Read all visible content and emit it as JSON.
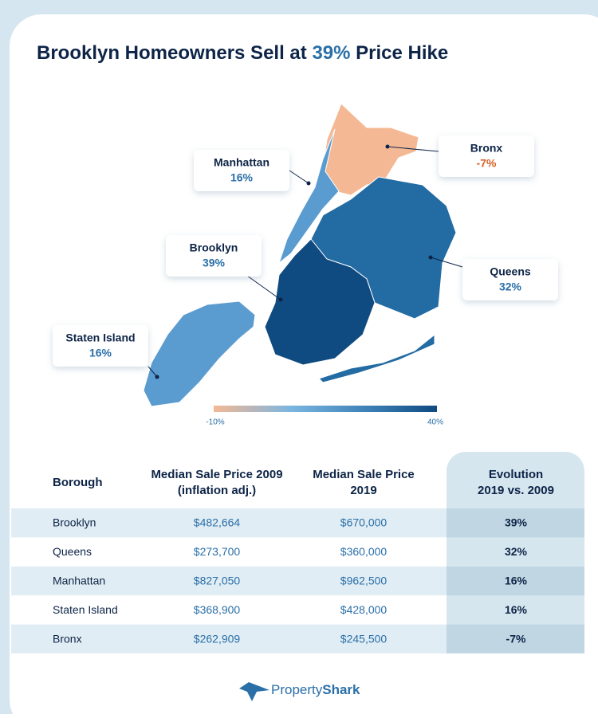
{
  "title_parts": [
    "Brooklyn Homeowners Sell at",
    "39%",
    "Price Hike"
  ],
  "map": {
    "labels": [
      {
        "name": "Manhattan",
        "value": "16%"
      },
      {
        "name": "Bronx",
        "value": "-7%"
      },
      {
        "name": "Brooklyn",
        "value": "39%"
      },
      {
        "name": "Queens",
        "value": "32%"
      },
      {
        "name": "Staten Island",
        "value": "16%"
      }
    ],
    "legend": {
      "min": "-10%",
      "max": "40%"
    }
  },
  "table": {
    "header": [
      [
        "Borough"
      ],
      [
        "Median Sale Price 2009",
        "(inflation adj.)"
      ],
      [
        "Median Sale Price",
        "2019"
      ],
      [
        "Evolution",
        "2019 vs. 2009"
      ]
    ],
    "rows": [
      [
        "Brooklyn",
        "$482,664",
        "$670,000",
        "39%"
      ],
      [
        "Queens",
        "$273,700",
        "$360,000",
        "32%"
      ],
      [
        "Manhattan",
        "$827,050",
        "$962,500",
        "16%"
      ],
      [
        "Staten Island",
        "$368,900",
        "$428,000",
        "16%"
      ],
      [
        "Bronx",
        "$262,909",
        "$245,500",
        "-7%"
      ]
    ]
  },
  "footer": {
    "brand_parts": [
      "Property",
      "Shark"
    ]
  }
}
